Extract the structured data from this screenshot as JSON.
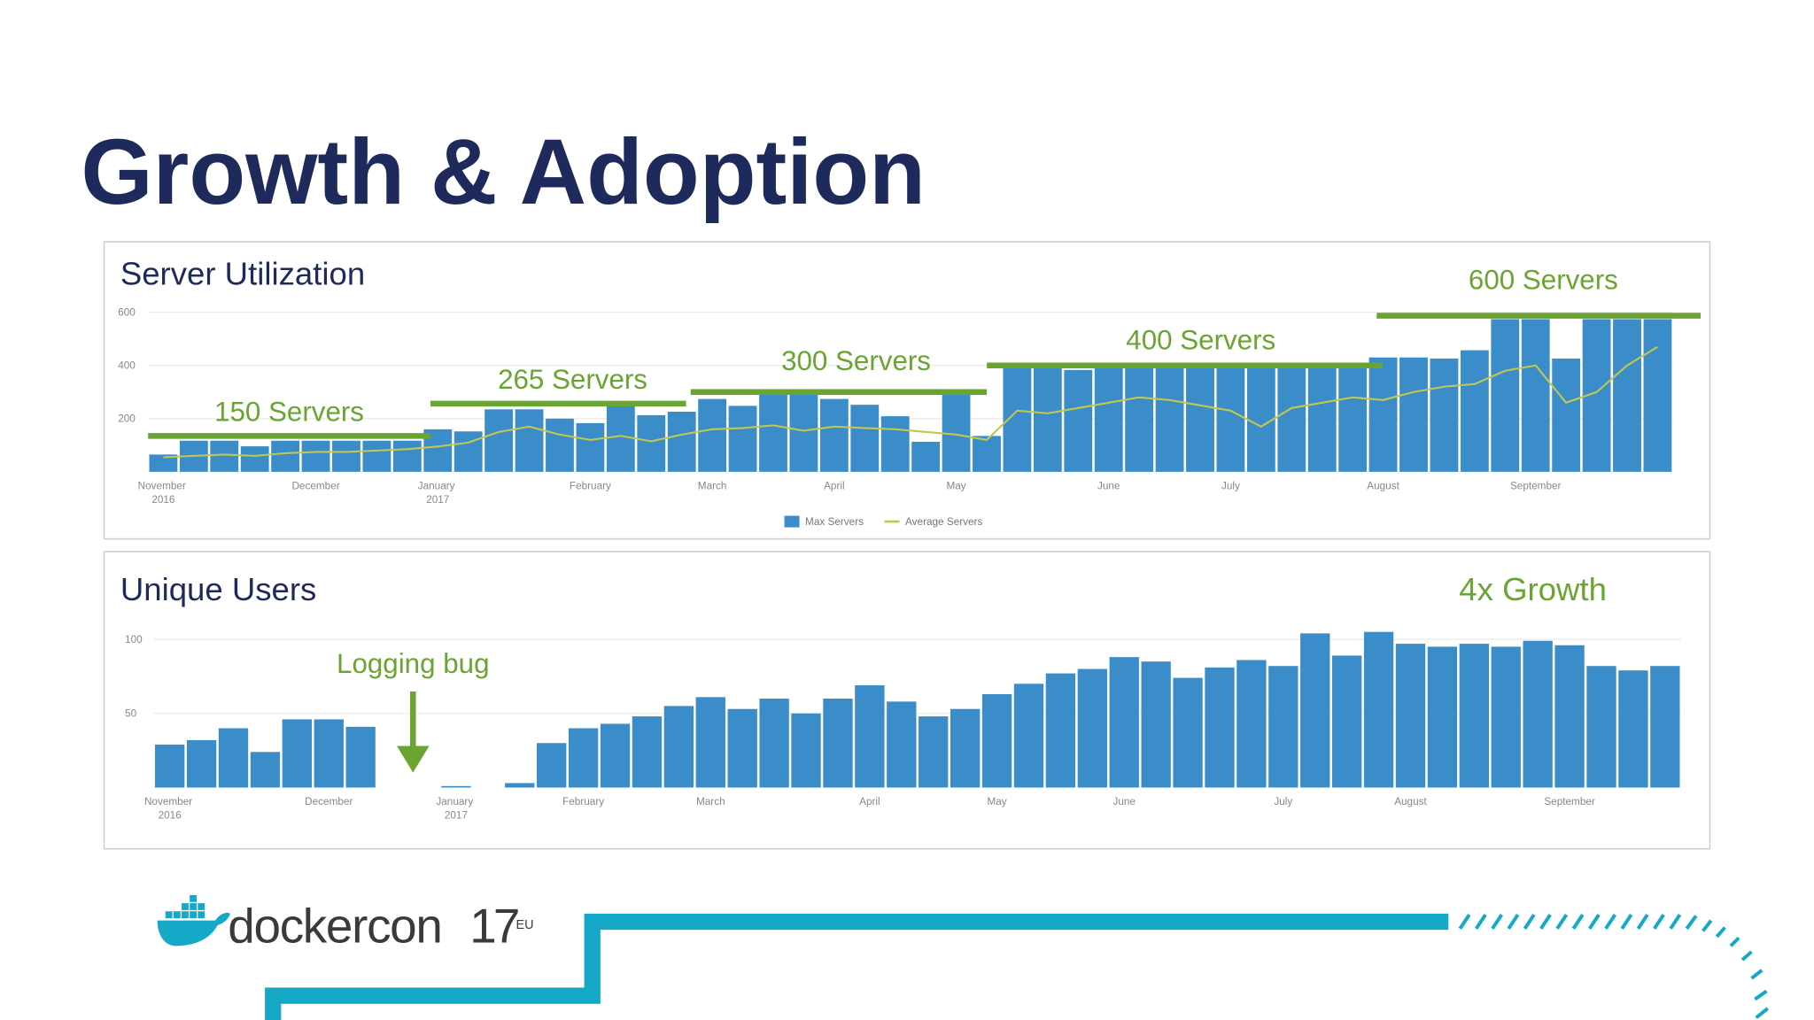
{
  "title": "Growth & Adoption",
  "chart_data": [
    {
      "type": "bar",
      "title": "Server Utilization",
      "categories": [
        "November 2016",
        null,
        null,
        null,
        null,
        "December",
        null,
        null,
        null,
        "January 2017",
        null,
        null,
        null,
        null,
        "February",
        null,
        null,
        null,
        "March",
        null,
        null,
        null,
        "April",
        null,
        null,
        null,
        "May",
        null,
        null,
        null,
        null,
        "June",
        null,
        null,
        null,
        "July",
        null,
        null,
        null,
        null,
        "August",
        null,
        null,
        null,
        null,
        "September",
        null,
        null,
        null,
        null
      ],
      "series": [
        {
          "name": "Max Servers",
          "color": "#3a8dc8",
          "type": "bar",
          "values": [
            65,
            117,
            117,
            96,
            117,
            117,
            117,
            117,
            117,
            160,
            152,
            235,
            235,
            200,
            183,
            252,
            213,
            226,
            274,
            248,
            291,
            291,
            274,
            252,
            209,
            113,
            291,
            135,
            391,
            391,
            383,
            391,
            391,
            391,
            391,
            391,
            391,
            391,
            391,
            391,
            430,
            430,
            426,
            457,
            574,
            574,
            426,
            574,
            574,
            574
          ]
        },
        {
          "name": "Average Servers",
          "color": "#c3c750",
          "type": "line",
          "values": [
            55,
            60,
            65,
            60,
            70,
            75,
            75,
            80,
            85,
            95,
            110,
            150,
            170,
            140,
            120,
            135,
            115,
            140,
            160,
            165,
            175,
            155,
            170,
            165,
            160,
            150,
            140,
            120,
            230,
            220,
            240,
            260,
            280,
            270,
            250,
            230,
            170,
            240,
            260,
            280,
            270,
            300,
            320,
            330,
            380,
            400,
            260,
            300,
            400,
            470
          ]
        }
      ],
      "ylim": [
        0,
        600
      ],
      "yticks": [
        200,
        400,
        600
      ],
      "grid": true,
      "legend": "bottom",
      "annotations": [
        "150 Servers",
        "265 Servers",
        "300 Servers",
        "400 Servers",
        "600 Servers"
      ],
      "annotation_color": "#6aa532"
    },
    {
      "type": "bar",
      "title": "Unique Users",
      "categories": [
        "November 2016",
        null,
        null,
        null,
        null,
        "December",
        null,
        null,
        null,
        "January 2017",
        null,
        null,
        null,
        "February",
        null,
        null,
        null,
        "March",
        null,
        null,
        null,
        null,
        "April",
        null,
        null,
        null,
        "May",
        null,
        null,
        null,
        "June",
        null,
        null,
        null,
        null,
        "July",
        null,
        null,
        null,
        "August",
        null,
        null,
        null,
        null,
        "September",
        null,
        null,
        null
      ],
      "values": [
        29,
        32,
        40,
        24,
        46,
        46,
        41,
        0,
        0,
        1,
        0,
        3,
        30,
        40,
        43,
        48,
        55,
        61,
        53,
        60,
        50,
        60,
        69,
        58,
        48,
        53,
        63,
        70,
        77,
        80,
        88,
        85,
        74,
        81,
        86,
        82,
        104,
        89,
        105,
        97,
        95,
        97,
        95,
        99,
        96,
        82,
        79,
        82
      ],
      "color": "#3a8dc8",
      "ylim": [
        0,
        110
      ],
      "yticks": [
        50,
        100
      ],
      "grid": true,
      "annotations": [
        "Logging bug",
        "4x Growth"
      ],
      "annotation_color": "#6aa532"
    }
  ],
  "footer": {
    "logo": "dockercon",
    "logo_number": "17",
    "logo_region": "EU"
  }
}
